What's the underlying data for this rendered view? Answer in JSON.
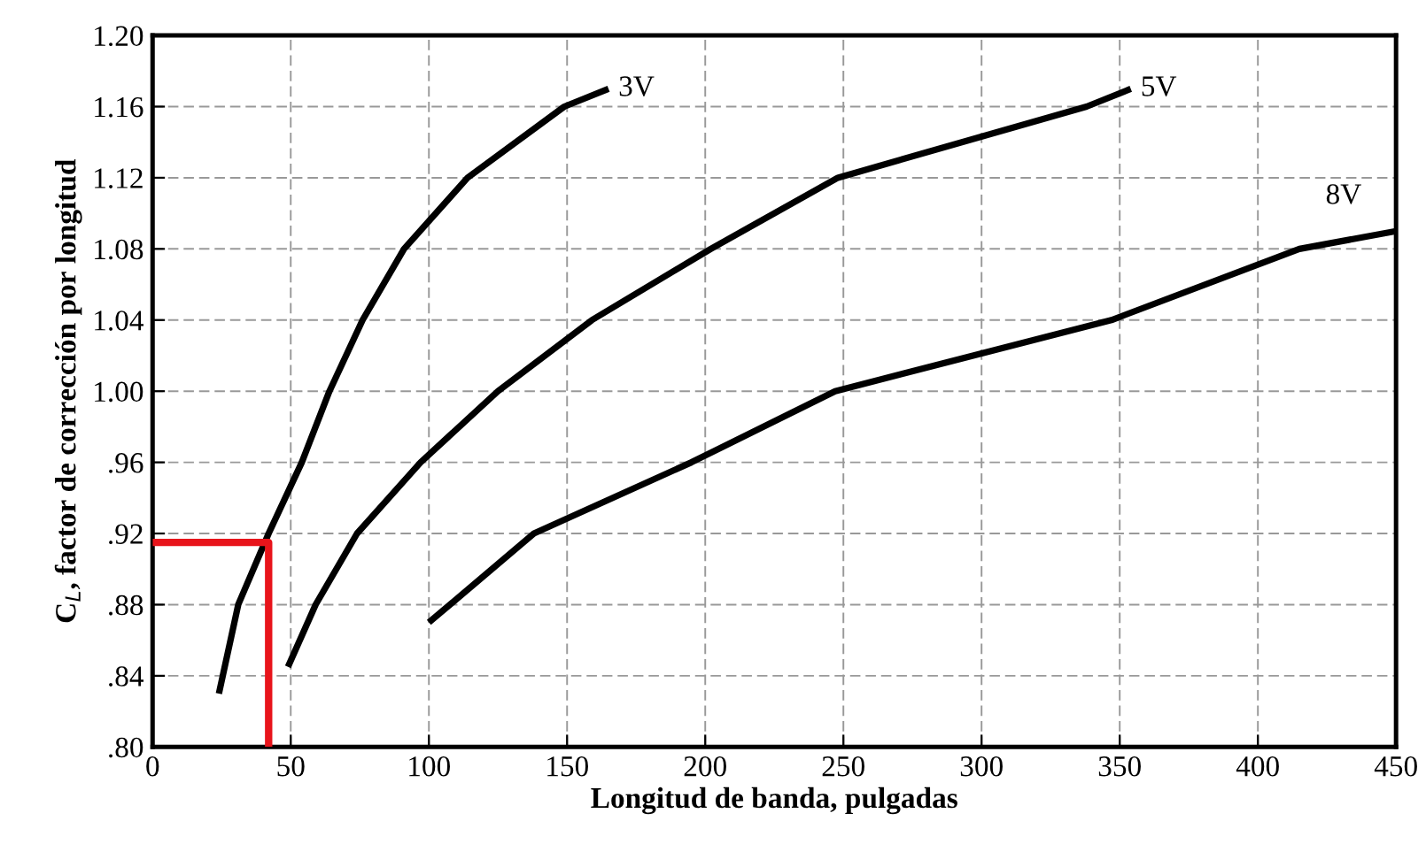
{
  "chart_data": {
    "type": "line",
    "xlabel": "Longitud de banda, pulgadas",
    "ylabel": "C$_{L}$, factor de corrección por longitud",
    "xlim": [
      0,
      450
    ],
    "xticks": [
      0,
      50,
      100,
      150,
      200,
      250,
      300,
      350,
      400,
      450
    ],
    "ylim": [
      0.8,
      1.2
    ],
    "yticks": [
      {
        "value": 0.8,
        "label": ".80"
      },
      {
        "value": 0.84,
        "label": ".84"
      },
      {
        "value": 0.88,
        "label": ".88"
      },
      {
        "value": 0.92,
        "label": ".92"
      },
      {
        "value": 0.96,
        "label": ".96"
      },
      {
        "value": 1.0,
        "label": "1.00"
      },
      {
        "value": 1.04,
        "label": "1.04"
      },
      {
        "value": 1.08,
        "label": "1.08"
      },
      {
        "value": 1.12,
        "label": "1.12"
      },
      {
        "value": 1.16,
        "label": "1.16"
      },
      {
        "value": 1.2,
        "label": "1.20"
      }
    ],
    "grid": true,
    "line_style": "solid",
    "marker": "none",
    "series": [
      {
        "name": "3V",
        "color": "#000000",
        "x": [
          24,
          31,
          42,
          54,
          64,
          76,
          91,
          114,
          149,
          165
        ],
        "values": [
          0.83,
          0.88,
          0.92,
          0.96,
          1.0,
          1.04,
          1.08,
          1.12,
          1.16,
          1.17
        ]
      },
      {
        "name": "5V",
        "color": "#000000",
        "x": [
          49,
          59,
          74,
          97,
          125,
          159,
          202,
          248,
          338,
          354
        ],
        "values": [
          0.845,
          0.88,
          0.92,
          0.96,
          1.0,
          1.04,
          1.08,
          1.12,
          1.16,
          1.17
        ]
      },
      {
        "name": "8V",
        "color": "#000000",
        "x": [
          100,
          138,
          195,
          247,
          347,
          415,
          450
        ],
        "values": [
          0.87,
          0.92,
          0.96,
          1.0,
          1.04,
          1.08,
          1.09
        ]
      },
      {
        "color": "#e8141b",
        "x": [
          0,
          42,
          42
        ],
        "values": [
          0.915,
          0.915,
          0.8
        ]
      }
    ]
  }
}
